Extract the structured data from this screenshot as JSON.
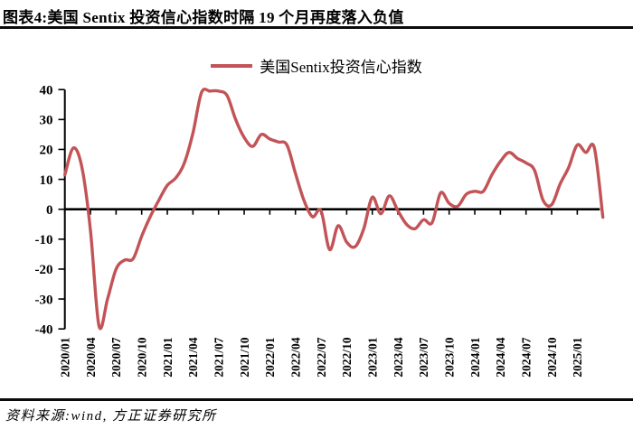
{
  "title": "图表4:美国 Sentix 投资信心指数时隔 19 个月再度落入负值",
  "legend": {
    "label": "美国Sentix投资信心指数",
    "line_color": "#c25357"
  },
  "footer": {
    "source": "资料来源:wind, 方正证券研究所"
  },
  "chart_data": {
    "type": "line",
    "title": "",
    "xlabel": "",
    "ylabel": "",
    "ylim": [
      -40,
      40
    ],
    "y_ticks": [
      40,
      30,
      20,
      10,
      0,
      -10,
      -20,
      -30,
      -40
    ],
    "grid": false,
    "legend_position": "top",
    "line_color": "#c25357",
    "axis_color": "#000000",
    "categories": [
      "2020/01",
      "2020/02",
      "2020/03",
      "2020/04",
      "2020/05",
      "2020/06",
      "2020/07",
      "2020/08",
      "2020/09",
      "2020/10",
      "2020/11",
      "2020/12",
      "2021/01",
      "2021/02",
      "2021/03",
      "2021/04",
      "2021/05",
      "2021/06",
      "2021/07",
      "2021/08",
      "2021/09",
      "2021/10",
      "2021/11",
      "2021/12",
      "2022/01",
      "2022/02",
      "2022/03",
      "2022/04",
      "2022/05",
      "2022/06",
      "2022/07",
      "2022/08",
      "2022/09",
      "2022/10",
      "2022/11",
      "2022/12",
      "2023/01",
      "2023/02",
      "2023/03",
      "2023/04",
      "2023/05",
      "2023/06",
      "2023/07",
      "2023/08",
      "2023/09",
      "2023/10",
      "2023/11",
      "2023/12",
      "2024/01",
      "2024/02",
      "2024/03",
      "2024/04",
      "2024/05",
      "2024/06",
      "2024/07",
      "2024/08",
      "2024/09",
      "2024/10",
      "2024/11",
      "2024/12",
      "2025/01",
      "2025/02",
      "2025/03",
      "2025/04"
    ],
    "series": [
      {
        "name": "美国Sentix投资信心指数",
        "values": [
          11.5,
          20.5,
          14,
          -7,
          -39,
          -30,
          -20,
          -17,
          -16.5,
          -9,
          -2.5,
          3,
          8,
          10.5,
          15.5,
          25.5,
          39,
          39.5,
          39.5,
          38,
          30,
          24,
          21,
          25,
          23.5,
          22.5,
          21.5,
          12,
          3,
          -2.5,
          -0.5,
          -13.5,
          -5.5,
          -11,
          -12.5,
          -6.5,
          4,
          -1.5,
          4.5,
          -0.5,
          -5,
          -6.5,
          -3.5,
          -4.5,
          5.5,
          2,
          1,
          5,
          6,
          6,
          11.5,
          16,
          19,
          17,
          15.5,
          13,
          3,
          1.5,
          8.5,
          14,
          21.5,
          19,
          20.5,
          -2.7
        ]
      }
    ],
    "x_tick_labels": [
      "2020/01",
      "2020/04",
      "2020/07",
      "2020/10",
      "2021/01",
      "2021/04",
      "2021/07",
      "2021/10",
      "2022/01",
      "2022/04",
      "2022/07",
      "2022/10",
      "2023/01",
      "2023/04",
      "2023/07",
      "2023/10",
      "2024/01",
      "2024/04",
      "2024/07",
      "2024/10",
      "2025/01"
    ]
  }
}
